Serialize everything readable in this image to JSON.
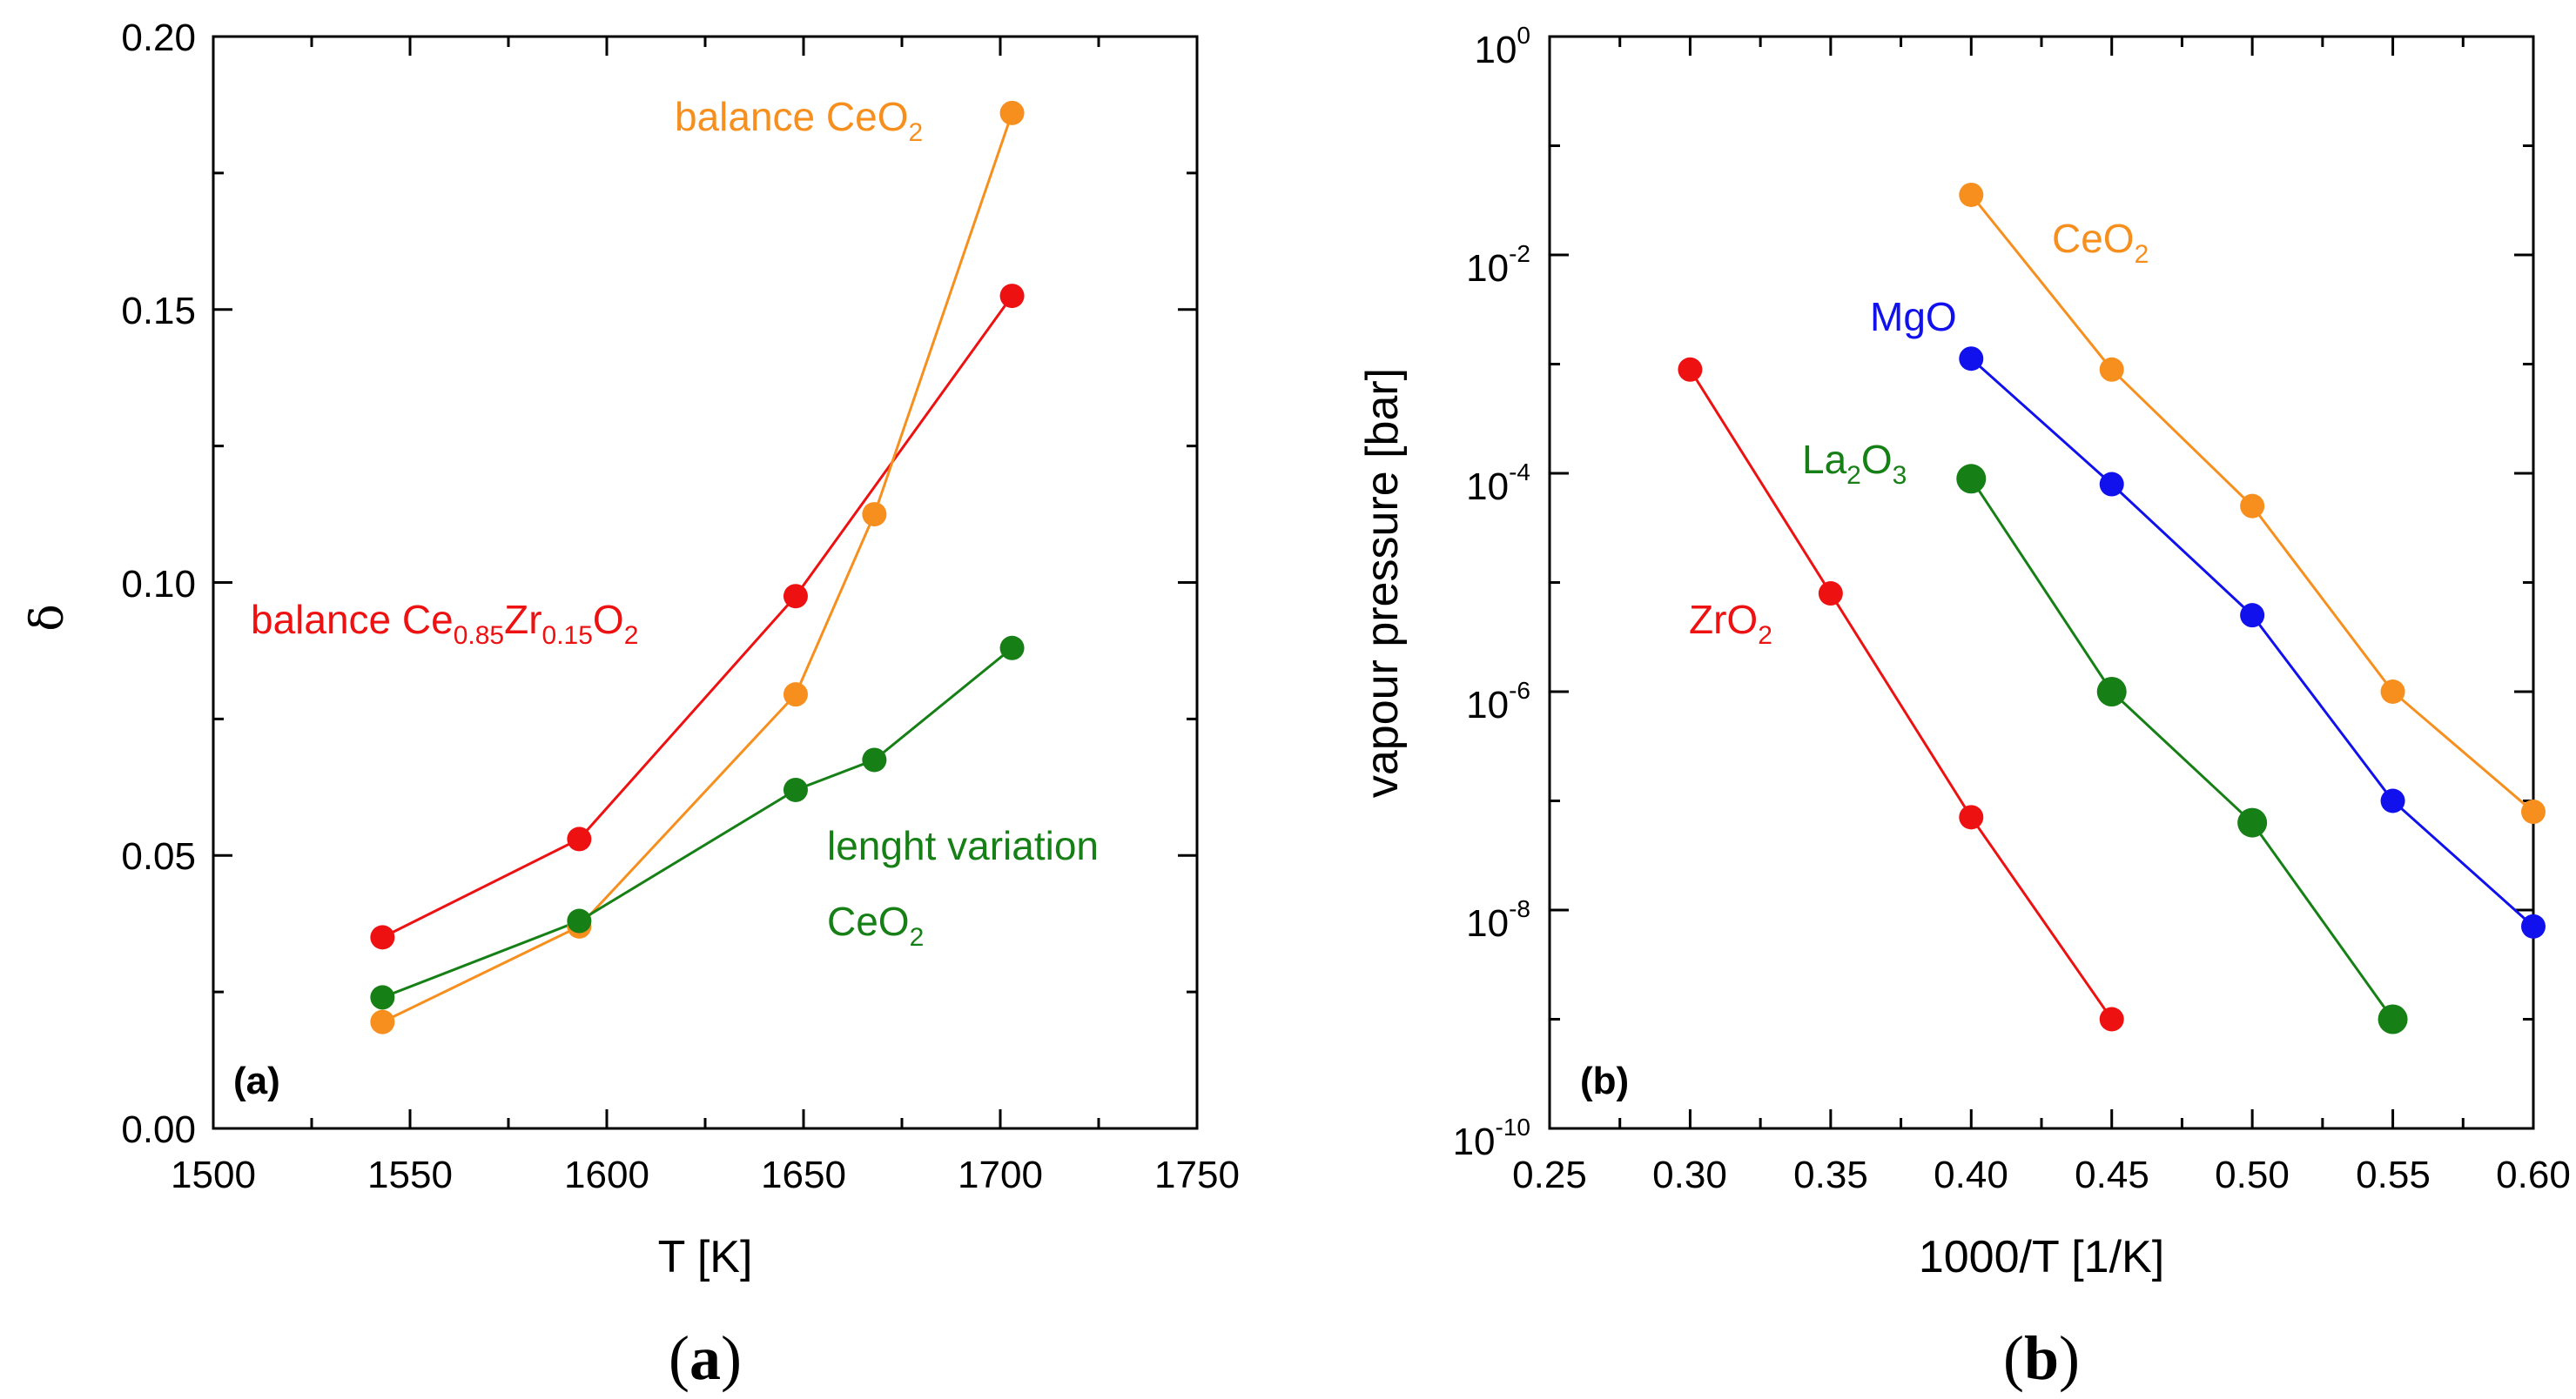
{
  "chart_data": [
    {
      "type": "line",
      "panel": "a",
      "panel_tag": "(a)",
      "caption": "a",
      "xlabel": "T [K]",
      "ylabel": "δ",
      "xlim": [
        1500,
        1750
      ],
      "ylim": [
        0.0,
        0.2
      ],
      "xticks": [
        1500,
        1550,
        1600,
        1650,
        1700,
        1750
      ],
      "yticks": [
        0.0,
        0.05,
        0.1,
        0.15,
        0.2
      ],
      "xtick_labels": [
        "1500",
        "1550",
        "1600",
        "1650",
        "1700",
        "1750"
      ],
      "ytick_labels": [
        "0.00",
        "0.05",
        "0.10",
        "0.15",
        "0.20"
      ],
      "series": [
        {
          "name": "balance Ce0.85Zr0.15O2",
          "color": "#ee1111",
          "x": [
            1543,
            1593,
            1648,
            1703
          ],
          "y": [
            0.035,
            0.053,
            0.0975,
            0.1525
          ]
        },
        {
          "name": "balance CeO2",
          "color": "#f78f1e",
          "x": [
            1543,
            1593,
            1648,
            1668,
            1703
          ],
          "y": [
            0.0195,
            0.037,
            0.0795,
            0.1125,
            0.186
          ]
        },
        {
          "name": "lenght variation CeO2",
          "color": "#168016",
          "x": [
            1543,
            1593,
            1648,
            1668,
            1703
          ],
          "y": [
            0.024,
            0.038,
            0.062,
            0.0675,
            0.088
          ]
        }
      ],
      "annotations": {
        "ceo2_main": "balance CeO",
        "ceo2_sub": "2",
        "cezr_main1": "balance Ce",
        "cezr_sub1": "0.85",
        "cezr_main2": "Zr",
        "cezr_sub2": "0.15",
        "cezr_main3": "O",
        "cezr_sub3": "2",
        "len_line1": "lenght variation",
        "len_main2": "CeO",
        "len_sub2": "2"
      }
    },
    {
      "type": "line",
      "panel": "b",
      "panel_tag": "(b)",
      "caption": "b",
      "xlabel": "1000/T [1/K]",
      "ylabel": "vapour pressure [bar]",
      "yscale": "log",
      "xlim": [
        0.25,
        0.6
      ],
      "ylim_exponent": [
        -10,
        0
      ],
      "xticks": [
        0.25,
        0.3,
        0.35,
        0.4,
        0.45,
        0.5,
        0.55,
        0.6
      ],
      "xtick_labels": [
        "0.25",
        "0.30",
        "0.35",
        "0.40",
        "0.45",
        "0.50",
        "0.55",
        "0.60"
      ],
      "ytick_base": "10",
      "ytick_exponents": [
        "0",
        "-2",
        "-4",
        "-6",
        "-8",
        "-10"
      ],
      "series": [
        {
          "name": "ZrO2",
          "color": "#ee1111",
          "x": [
            0.3,
            0.35,
            0.4,
            0.45
          ],
          "log10_y": [
            -3.05,
            -5.1,
            -7.15,
            -9.0
          ]
        },
        {
          "name": "La2O3",
          "color": "#168016",
          "x": [
            0.4,
            0.45,
            0.5,
            0.55
          ],
          "log10_y": [
            -4.05,
            -6.0,
            -7.2,
            -9.0
          ]
        },
        {
          "name": "MgO",
          "color": "#1111ee",
          "x": [
            0.4,
            0.45,
            0.5,
            0.55,
            0.6
          ],
          "log10_y": [
            -2.95,
            -4.1,
            -5.3,
            -7.0,
            -8.15
          ]
        },
        {
          "name": "CeO2",
          "color": "#f78f1e",
          "x": [
            0.4,
            0.45,
            0.5,
            0.55,
            0.6
          ],
          "log10_y": [
            -1.45,
            -3.05,
            -4.3,
            -6.0,
            -7.1
          ]
        }
      ],
      "annotations": {
        "ceo2_main": "CeO",
        "ceo2_sub": "2",
        "mgo": "MgO",
        "la_main1": "La",
        "la_sub1": "2",
        "la_main2": "O",
        "la_sub2": "3",
        "zr_main": "ZrO",
        "zr_sub": "2"
      }
    }
  ]
}
